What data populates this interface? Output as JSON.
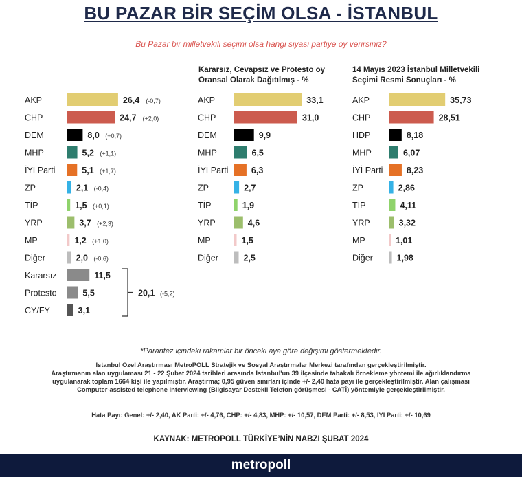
{
  "header": {
    "title": "BU PAZAR BİR SEÇİM OLSA - İSTANBUL",
    "subtitle": "Bu Pazar bir milletvekili seçimi olsa hangi siyasi partiye oy verirsiniz?"
  },
  "chart_data": [
    {
      "type": "bar",
      "title": "",
      "categories": [
        "AKP",
        "CHP",
        "DEM",
        "MHP",
        "İYİ Parti",
        "ZP",
        "TİP",
        "YRP",
        "MP",
        "Diğer",
        "Kararsız",
        "Protesto",
        "CY/FY"
      ],
      "values": [
        26.4,
        24.7,
        8.0,
        5.2,
        5.1,
        2.1,
        1.5,
        3.7,
        1.2,
        2.0,
        11.5,
        5.5,
        3.1
      ],
      "value_labels": [
        "26,4",
        "24,7",
        "8,0",
        "5,2",
        "5,1",
        "2,1",
        "1,5",
        "3,7",
        "1,2",
        "2,0",
        "11,5",
        "5,5",
        "3,1"
      ],
      "change_labels": [
        "(-0,7)",
        "(+2,0)",
        "(+0,7)",
        "(+1,1)",
        "(+1,7)",
        "(-0,4)",
        "(+0,1)",
        "(+2,3)",
        "(+1,0)",
        "(-0,6)",
        "",
        "",
        ""
      ],
      "colors": [
        "#e2cd72",
        "#cc5b4e",
        "#000000",
        "#2e7d6e",
        "#e57126",
        "#35b2e6",
        "#8fd36b",
        "#9cbe6c",
        "#f2c9c9",
        "#bdbdbd",
        "#8a8a8a",
        "#8a8a8a",
        "#555555"
      ],
      "bracket": {
        "value_label": "20,1",
        "change_label": "(-5,2)"
      }
    },
    {
      "type": "bar",
      "title": "Kararsız, Cevapsız ve Protesto oy Oransal Olarak Dağıtılmış - %",
      "categories": [
        "AKP",
        "CHP",
        "DEM",
        "MHP",
        "İYİ Parti",
        "ZP",
        "TİP",
        "YRP",
        "MP",
        "Diğer"
      ],
      "values": [
        33.1,
        31.0,
        9.9,
        6.5,
        6.3,
        2.7,
        1.9,
        4.6,
        1.5,
        2.5
      ],
      "value_labels": [
        "33,1",
        "31,0",
        "9,9",
        "6,5",
        "6,3",
        "2,7",
        "1,9",
        "4,6",
        "1,5",
        "2,5"
      ],
      "colors": [
        "#e2cd72",
        "#cc5b4e",
        "#000000",
        "#2e7d6e",
        "#e57126",
        "#35b2e6",
        "#8fd36b",
        "#9cbe6c",
        "#f2c9c9",
        "#bdbdbd"
      ]
    },
    {
      "type": "bar",
      "title": "14 Mayıs 2023 İstanbul Milletvekili Seçimi Resmi Sonuçları - %",
      "categories": [
        "AKP",
        "CHP",
        "HDP",
        "MHP",
        "İYİ Parti",
        "ZP",
        "TİP",
        "YRP",
        "MP",
        "Diğer"
      ],
      "values": [
        35.73,
        28.51,
        8.18,
        6.07,
        8.23,
        2.86,
        4.11,
        3.32,
        1.01,
        1.98
      ],
      "value_labels": [
        "35,73",
        "28,51",
        "8,18",
        "6,07",
        "8,23",
        "2,86",
        "4,11",
        "3,32",
        "1,01",
        "1,98"
      ],
      "colors": [
        "#e2cd72",
        "#cc5b4e",
        "#000000",
        "#2e7d6e",
        "#e57126",
        "#35b2e6",
        "#8fd36b",
        "#9cbe6c",
        "#f2c9c9",
        "#bdbdbd"
      ]
    }
  ],
  "notes": {
    "change_note": "*Parantez içindeki rakamlar bir önceki aya göre değişimi göstermektedir.",
    "method_1": "İstanbul Özel Araştırması MetroPOLL Stratejik ve Sosyal Araştırmalar Merkezi tarafından gerçekleştirilmiştir.",
    "method_2": "Araştırmanın alan uygulaması 21 - 22 Şubat 2024 tarihleri arasında İstanbul'un 39 ilçesinde tabakalı örnekleme yöntemi ile ağırlıklandırma",
    "method_3": "uygulanarak toplam 1664 kişi ile yapılmıştır. Araştırma; 0,95 güven sınırları içinde +/- 2,40 hata payı ile gerçekleştirilmiştir. Alan çalışması",
    "method_4": "Computer-assisted telephone interviewing (Bilgisayar Destekli Telefon görüşmesi - CATİ) yöntemiyle gerçekleştirilmiştir.",
    "margins": "Hata Payı: Genel: +/- 2,40, AK Parti: +/- 4,76, CHP: +/- 4,83, MHP: +/- 10,57, DEM Parti: +/- 8,53, İYİ Parti: +/- 10,69",
    "source": "KAYNAK: METROPOLL TÜRKİYE’NİN NABZI ŞUBAT 2024"
  },
  "footer": {
    "brand": "metropoll"
  }
}
